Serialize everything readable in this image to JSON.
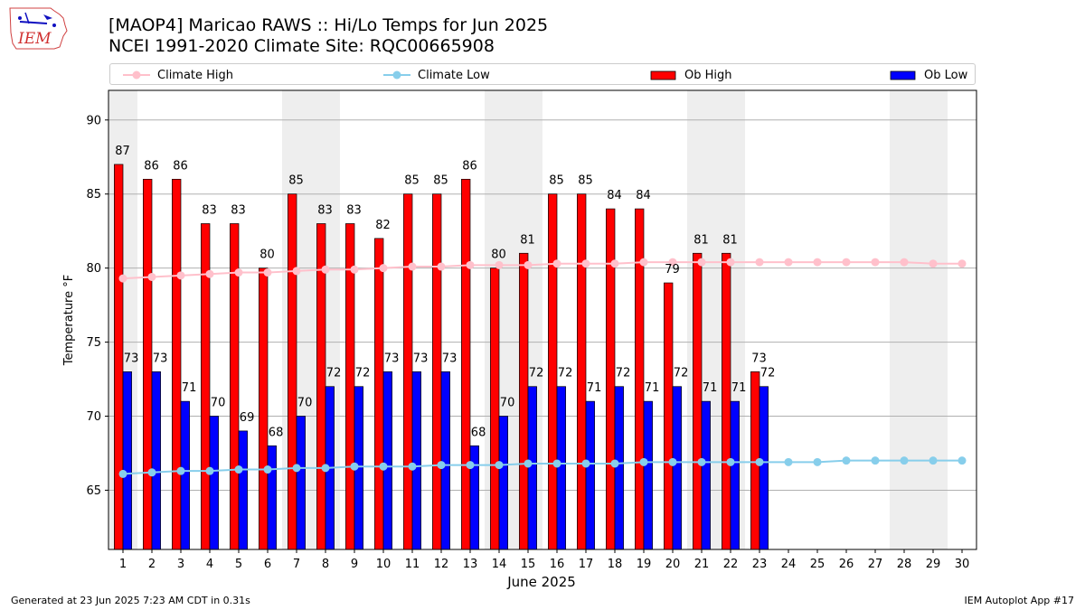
{
  "title": {
    "line1": "[MAOP4] Maricao RAWS :: Hi/Lo Temps for Jun 2025",
    "line2": "NCEI 1991-2020 Climate Site: RQC00665908"
  },
  "logo": {
    "text": "IEM"
  },
  "legend": {
    "climate_high": "Climate High",
    "climate_low": "Climate Low",
    "ob_high": "Ob High",
    "ob_low": "Ob Low"
  },
  "footer": {
    "left": "Generated at 23 Jun 2025 7:23 AM CDT in 0.31s",
    "right": "IEM Autoplot App #17"
  },
  "colors": {
    "ob_high": "#ff0000",
    "ob_low": "#0000ff",
    "climate_high": "#ffc0cb",
    "climate_low": "#87ceeb",
    "weekend_band": "#eeeeee",
    "grid": "#b0b0b0"
  },
  "chart_data": {
    "type": "bar",
    "xlabel": "June 2025",
    "ylabel": "Temperature °F",
    "ylim": [
      61,
      92
    ],
    "yticks": [
      65,
      70,
      75,
      80,
      85,
      90
    ],
    "xlim": [
      0.5,
      30.5
    ],
    "grid": "horizontal",
    "legend_placement": "top",
    "days": [
      1,
      2,
      3,
      4,
      5,
      6,
      7,
      8,
      9,
      10,
      11,
      12,
      13,
      14,
      15,
      16,
      17,
      18,
      19,
      20,
      21,
      22,
      23,
      24,
      25,
      26,
      27,
      28,
      29,
      30
    ],
    "weekend_bands": [
      [
        0.5,
        1.5
      ],
      [
        6.5,
        8.5
      ],
      [
        13.5,
        15.5
      ],
      [
        20.5,
        22.5
      ],
      [
        27.5,
        29.5
      ]
    ],
    "series": [
      {
        "name": "Ob High",
        "kind": "bar",
        "values": [
          87,
          86,
          86,
          83,
          83,
          80,
          85,
          83,
          83,
          82,
          85,
          85,
          86,
          80,
          81,
          85,
          85,
          84,
          84,
          79,
          81,
          81,
          73
        ]
      },
      {
        "name": "Ob Low",
        "kind": "bar",
        "values": [
          73,
          73,
          71,
          70,
          69,
          68,
          70,
          72,
          72,
          73,
          73,
          73,
          68,
          70,
          72,
          72,
          71,
          72,
          71,
          72,
          71,
          71,
          72
        ]
      },
      {
        "name": "Climate High",
        "kind": "line",
        "values": [
          79.3,
          79.4,
          79.5,
          79.6,
          79.7,
          79.7,
          79.8,
          79.9,
          79.9,
          80.0,
          80.1,
          80.1,
          80.2,
          80.2,
          80.2,
          80.3,
          80.3,
          80.3,
          80.4,
          80.4,
          80.4,
          80.4,
          80.4,
          80.4,
          80.4,
          80.4,
          80.4,
          80.4,
          80.3,
          80.3
        ]
      },
      {
        "name": "Climate Low",
        "kind": "line",
        "values": [
          66.1,
          66.2,
          66.3,
          66.3,
          66.4,
          66.4,
          66.5,
          66.5,
          66.6,
          66.6,
          66.6,
          66.7,
          66.7,
          66.7,
          66.8,
          66.8,
          66.8,
          66.8,
          66.9,
          66.9,
          66.9,
          66.9,
          66.9,
          66.9,
          66.9,
          67.0,
          67.0,
          67.0,
          67.0,
          67.0
        ]
      }
    ]
  }
}
